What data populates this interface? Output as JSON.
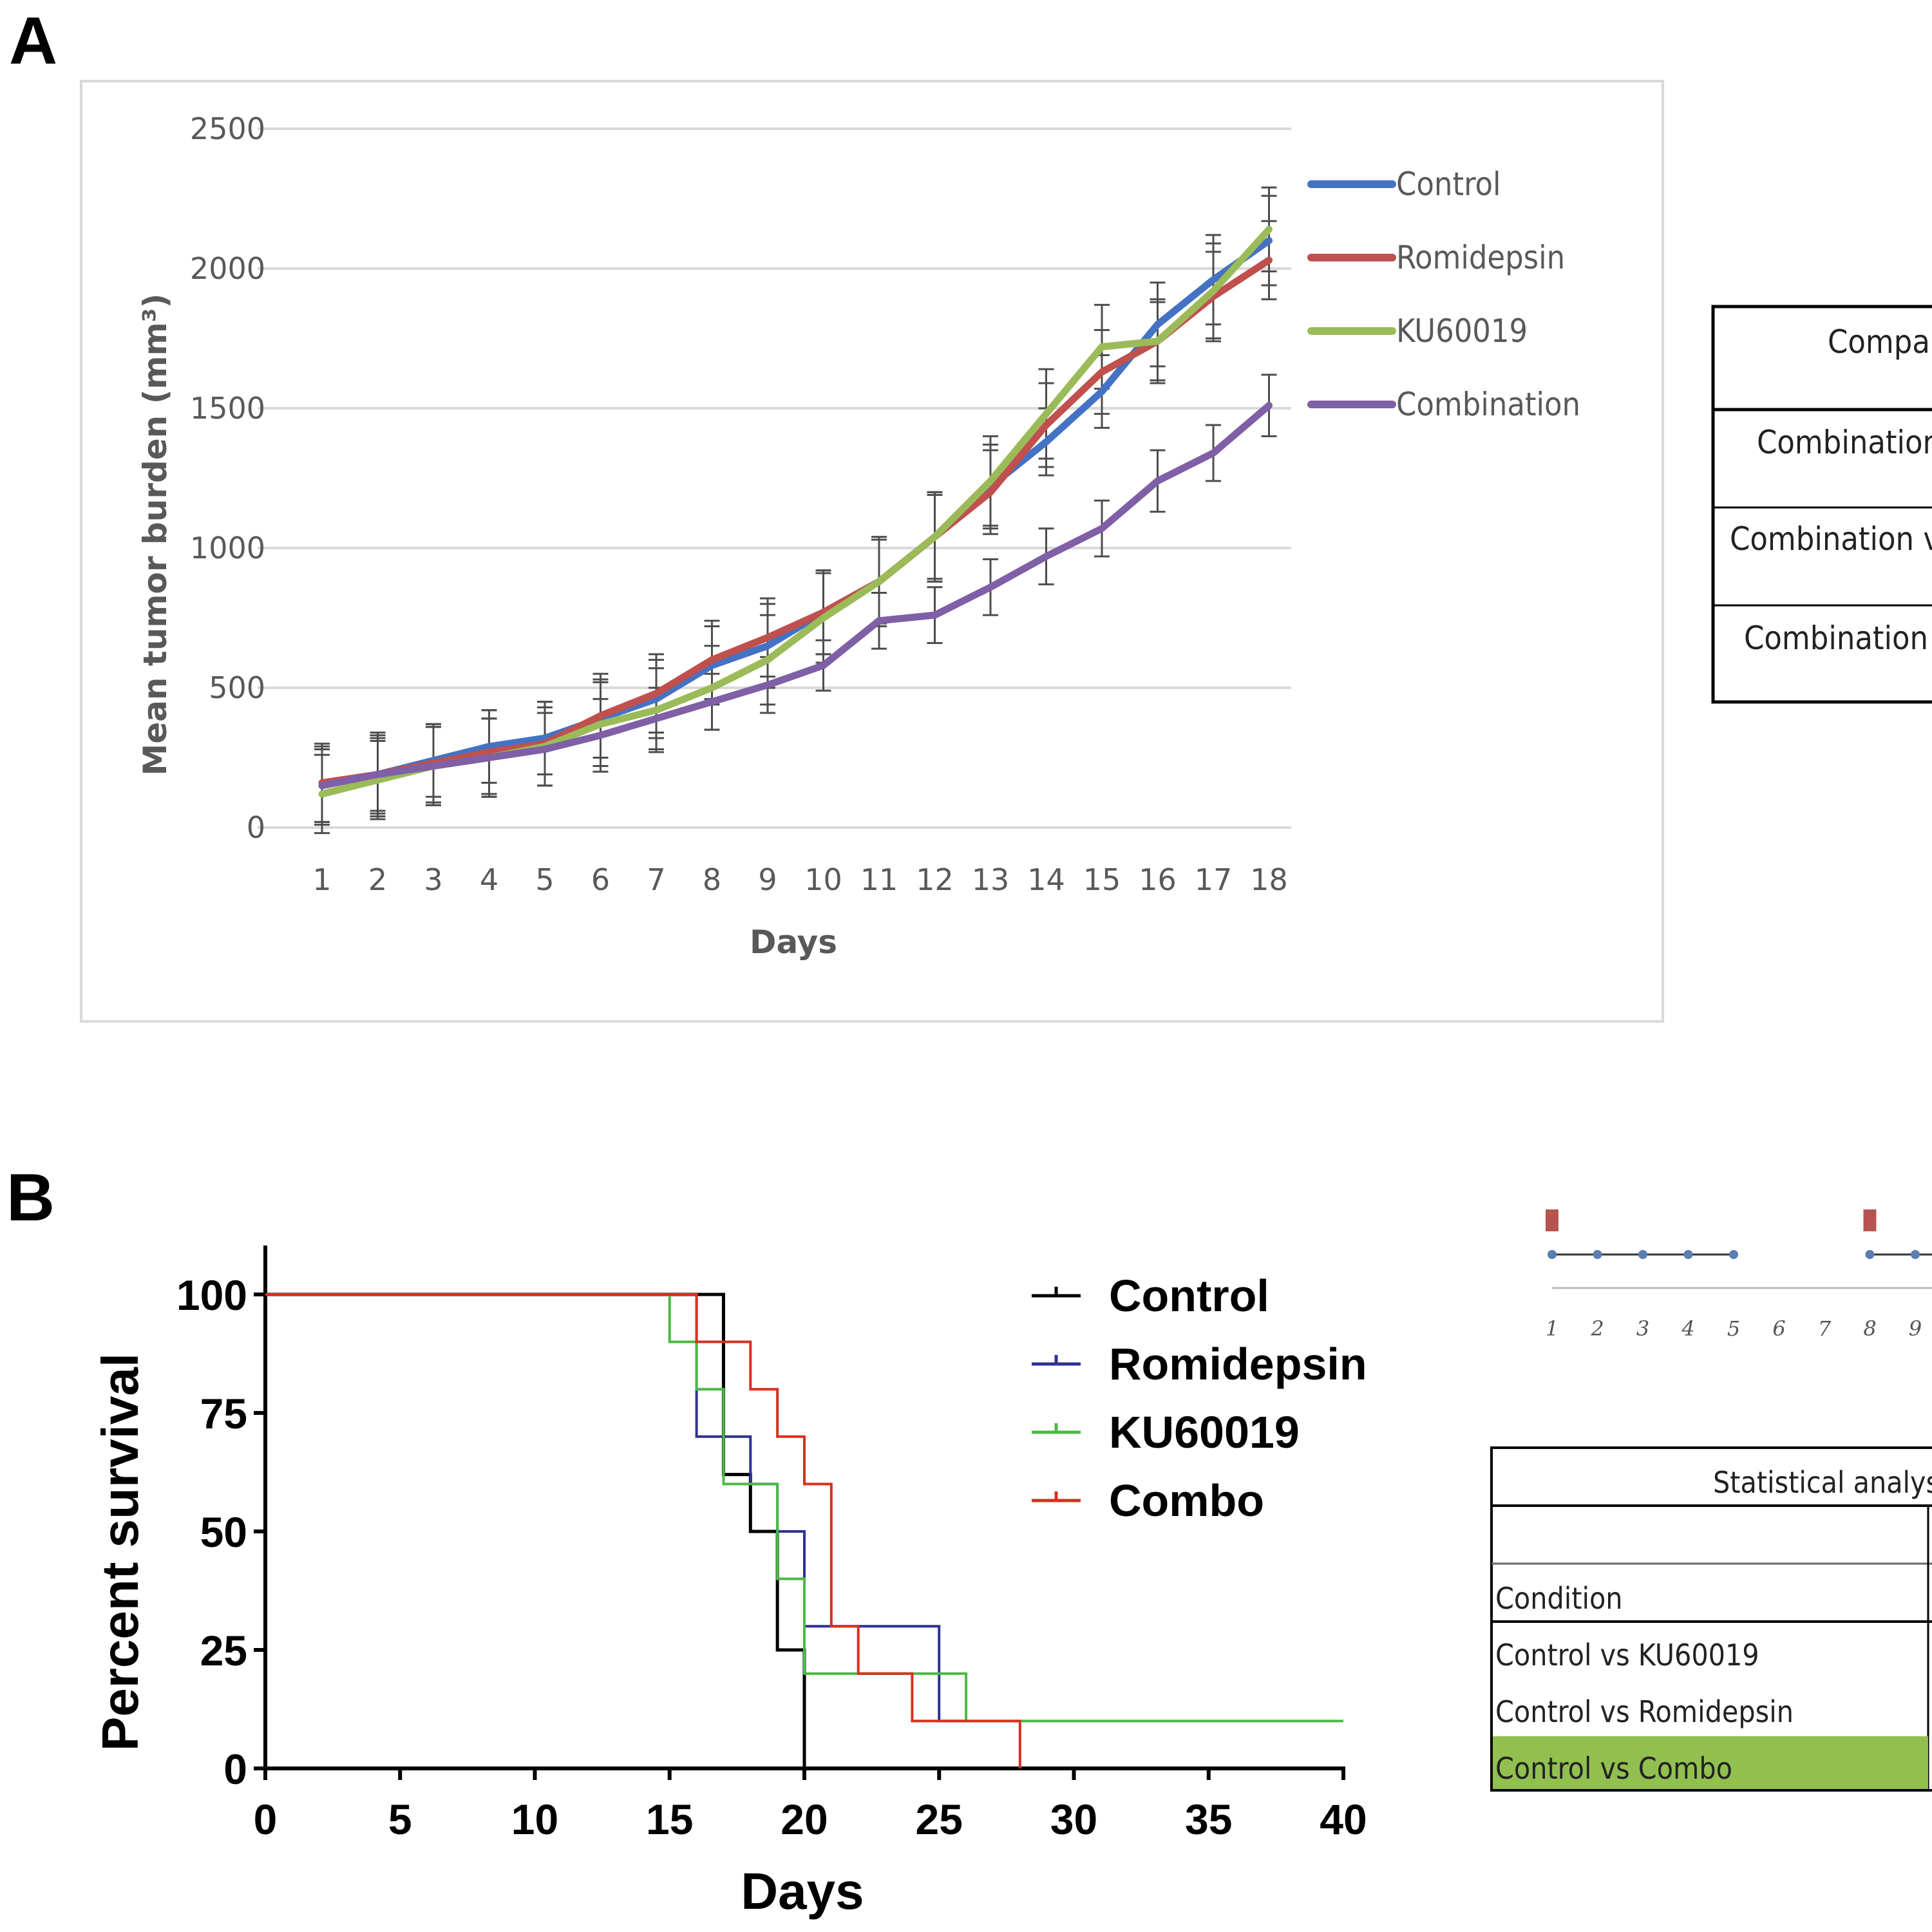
{
  "panels": {
    "a": "A",
    "b": "B"
  },
  "chart_data": [
    {
      "id": "A",
      "type": "line",
      "title": "",
      "xlabel": "Days",
      "ylabel": "Mean tumor burden (mm³)",
      "categories": [
        1,
        2,
        3,
        4,
        5,
        6,
        7,
        8,
        9,
        10,
        11,
        12,
        13,
        14,
        15,
        16,
        17,
        18
      ],
      "ylim": [
        0,
        2500
      ],
      "yticks": [
        0,
        500,
        1000,
        1500,
        2000,
        2500
      ],
      "grid": true,
      "legend_position": "right",
      "series": [
        {
          "name": "Control",
          "color": "#4472C4",
          "values": [
            150,
            190,
            240,
            290,
            320,
            390,
            460,
            580,
            650,
            770,
            880,
            1040,
            1220,
            1380,
            1560,
            1800,
            1960,
            2100
          ],
          "errors": [
            140,
            130,
            130,
            130,
            130,
            140,
            140,
            140,
            150,
            150,
            150,
            150,
            150,
            120,
            130,
            150,
            160,
            160
          ]
        },
        {
          "name": "Romidepsin",
          "color": "#C0504D",
          "values": [
            160,
            190,
            230,
            270,
            300,
            400,
            480,
            600,
            680,
            770,
            880,
            1040,
            1200,
            1440,
            1630,
            1740,
            1900,
            2030
          ],
          "errors": [
            140,
            150,
            140,
            150,
            150,
            150,
            140,
            140,
            140,
            150,
            150,
            160,
            150,
            150,
            150,
            150,
            160,
            140
          ]
        },
        {
          "name": "KU60019",
          "color": "#9BBB59",
          "values": [
            120,
            170,
            220,
            250,
            290,
            370,
            420,
            500,
            600,
            750,
            880,
            1040,
            1240,
            1480,
            1720,
            1740,
            1920,
            2140
          ],
          "errors": [
            140,
            140,
            140,
            140,
            140,
            150,
            150,
            150,
            160,
            160,
            160,
            160,
            160,
            160,
            150,
            140,
            170,
            150
          ]
        },
        {
          "name": "Combination",
          "color": "#7F5FA6",
          "values": [
            150,
            190,
            220,
            250,
            280,
            330,
            390,
            450,
            510,
            580,
            740,
            760,
            860,
            970,
            1070,
            1240,
            1340,
            1510
          ],
          "errors": [
            130,
            140,
            140,
            140,
            130,
            130,
            110,
            100,
            100,
            90,
            100,
            100,
            100,
            100,
            100,
            110,
            100,
            110
          ]
        }
      ]
    },
    {
      "id": "B",
      "type": "line",
      "subtype": "kaplan-meier",
      "title": "",
      "xlabel": "Days",
      "ylabel": "Percent survival",
      "xlim": [
        0,
        40
      ],
      "ylim": [
        0,
        100
      ],
      "xticks": [
        0,
        5,
        10,
        15,
        20,
        25,
        30,
        35,
        40
      ],
      "yticks": [
        0,
        25,
        50,
        75,
        100
      ],
      "grid": false,
      "legend_position": "top-right",
      "series": [
        {
          "name": "Control",
          "color": "#000000",
          "x": [
            0,
            17,
            18,
            19,
            20
          ],
          "y": [
            100,
            62,
            50,
            25,
            0
          ]
        },
        {
          "name": "Romidepsin",
          "color": "#2E3192",
          "x": [
            0,
            16,
            18,
            19,
            20,
            25,
            26
          ],
          "y": [
            100,
            70,
            60,
            50,
            30,
            10,
            10
          ]
        },
        {
          "name": "KU60019",
          "color": "#4DB848",
          "x": [
            0,
            15,
            16,
            17,
            19,
            20,
            26,
            40
          ],
          "y": [
            100,
            90,
            80,
            60,
            40,
            20,
            10,
            10
          ]
        },
        {
          "name": "Combo",
          "color": "#D7301F",
          "x": [
            0,
            16,
            18,
            19,
            20,
            21,
            22,
            24,
            26,
            28
          ],
          "y": [
            100,
            90,
            80,
            70,
            60,
            30,
            20,
            10,
            10,
            0
          ]
        }
      ]
    }
  ],
  "table_a": {
    "rows": [
      "Compari",
      "Combination v",
      "Combination vs",
      "Combination vs"
    ]
  },
  "schedule": {
    "day_labels": [
      "1",
      "2",
      "3",
      "4",
      "5",
      "6",
      "7",
      "8",
      "9"
    ],
    "marker_color": "#B85450",
    "dot_color": "#5B7DB1"
  },
  "table_b": {
    "header": "Statistical analyses",
    "column_label": "Condition",
    "rows": [
      "Control vs KU60019",
      "Control vs Romidepsin",
      "Control vs Combo"
    ],
    "highlight_color": "#92C050"
  }
}
